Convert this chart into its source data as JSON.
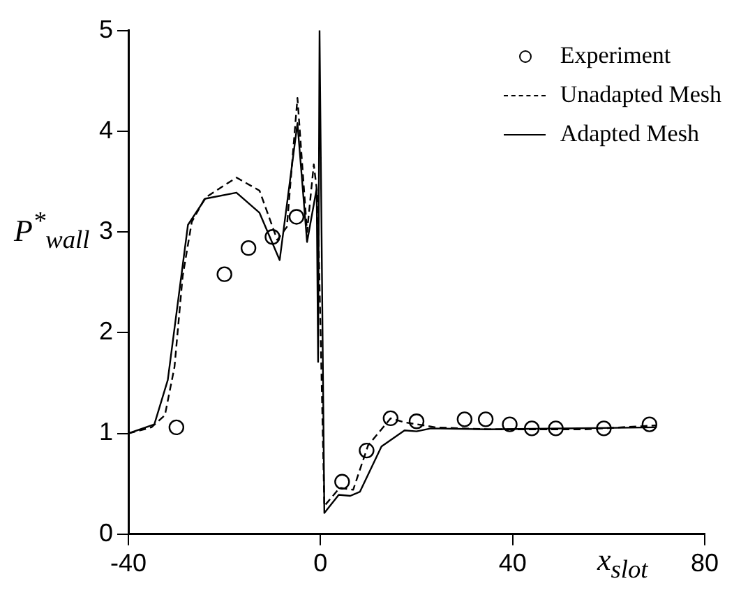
{
  "chart_data": {
    "type": "line",
    "xlabel": "x$_{slot}$",
    "ylabel": "P$^{*}$$_{wall}$",
    "xlim": [
      -40,
      80
    ],
    "xticks": [
      -40,
      0,
      40,
      80
    ],
    "ylim": [
      0,
      5
    ],
    "yticks": [
      0,
      1,
      2,
      3,
      4,
      5
    ],
    "grid": false,
    "legend": "top right",
    "series": [
      {
        "name": "Experiment",
        "type": "scatter",
        "marker": "circle",
        "color": "#000000",
        "x": [
          -30,
          -20,
          -15,
          -10,
          -5,
          4.5,
          9.6,
          14.6,
          20,
          30,
          34.4,
          39.4,
          44,
          49,
          59,
          68.5
        ],
        "values": [
          1.06,
          2.58,
          2.84,
          2.95,
          3.15,
          0.52,
          0.83,
          1.15,
          1.12,
          1.14,
          1.14,
          1.09,
          1.05,
          1.05,
          1.05,
          1.09
        ]
      },
      {
        "name": "Unadapted Mesh",
        "type": "line",
        "line_style": "dashed",
        "color": "#000000",
        "x": [
          -40,
          -35.2,
          -32.4,
          -30.4,
          -28.7,
          -26.8,
          -24,
          -17.5,
          -12.7,
          -9,
          -7,
          -4.8,
          -2.8,
          -1.4,
          -0.6,
          0.8,
          4,
          6.8,
          9.9,
          14.6,
          17.5,
          24,
          35,
          55,
          70
        ],
        "values": [
          1.0,
          1.06,
          1.18,
          1.66,
          2.56,
          3.1,
          3.34,
          3.54,
          3.41,
          2.92,
          3.05,
          4.33,
          3.0,
          3.67,
          3.35,
          0.28,
          0.46,
          0.44,
          0.88,
          1.15,
          1.11,
          1.06,
          1.04,
          1.04,
          1.08
        ]
      },
      {
        "name": "Adapted Mesh",
        "type": "line",
        "line_style": "solid",
        "color": "#000000",
        "x": [
          -40,
          -34.6,
          -31.8,
          -27.6,
          -24,
          -17.5,
          -12.7,
          -8.5,
          -4.8,
          -2.8,
          -0.8,
          -0.5,
          -0.2,
          0.8,
          3.8,
          6.2,
          8.2,
          12.7,
          17.5,
          20,
          23,
          35,
          70
        ],
        "values": [
          1.0,
          1.09,
          1.53,
          3.07,
          3.33,
          3.39,
          3.19,
          2.72,
          4.08,
          2.9,
          3.43,
          1.71,
          5.0,
          0.21,
          0.39,
          0.38,
          0.42,
          0.87,
          1.03,
          1.02,
          1.05,
          1.04,
          1.06
        ]
      }
    ]
  }
}
